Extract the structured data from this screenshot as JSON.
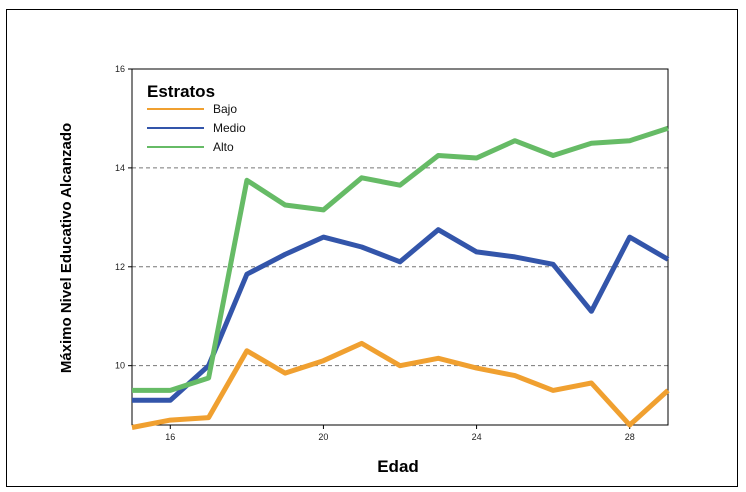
{
  "chart_data": {
    "type": "line",
    "xlabel": "Edad",
    "ylabel": "Máximo Nivel Educativo Alcanzado",
    "xlim": [
      15,
      29
    ],
    "ylim": [
      8.8,
      16
    ],
    "xticks": [
      16,
      20,
      24,
      28
    ],
    "yticks": [
      10,
      12,
      14,
      16
    ],
    "grid": "horizontal-dashed",
    "legend": {
      "title": "Estratos",
      "placement": "top-left"
    },
    "x": [
      15,
      16,
      17,
      18,
      19,
      20,
      21,
      22,
      23,
      24,
      25,
      26,
      27,
      28,
      29
    ],
    "series": [
      {
        "name": "Bajo",
        "color": "#f0a030",
        "values": [
          8.75,
          8.9,
          8.95,
          10.3,
          9.85,
          10.1,
          10.45,
          10.0,
          10.15,
          9.95,
          9.8,
          9.5,
          9.65,
          8.8,
          9.5
        ]
      },
      {
        "name": "Medio",
        "color": "#3355aa",
        "values": [
          9.3,
          9.3,
          10.0,
          11.85,
          12.25,
          12.6,
          12.4,
          12.1,
          12.75,
          12.3,
          12.2,
          12.05,
          11.1,
          12.6,
          12.15
        ]
      },
      {
        "name": "Alto",
        "color": "#66bb66",
        "values": [
          9.5,
          9.5,
          9.75,
          13.75,
          13.25,
          13.15,
          13.8,
          13.65,
          14.25,
          14.2,
          14.55,
          14.25,
          14.5,
          14.55,
          14.8
        ]
      }
    ]
  }
}
